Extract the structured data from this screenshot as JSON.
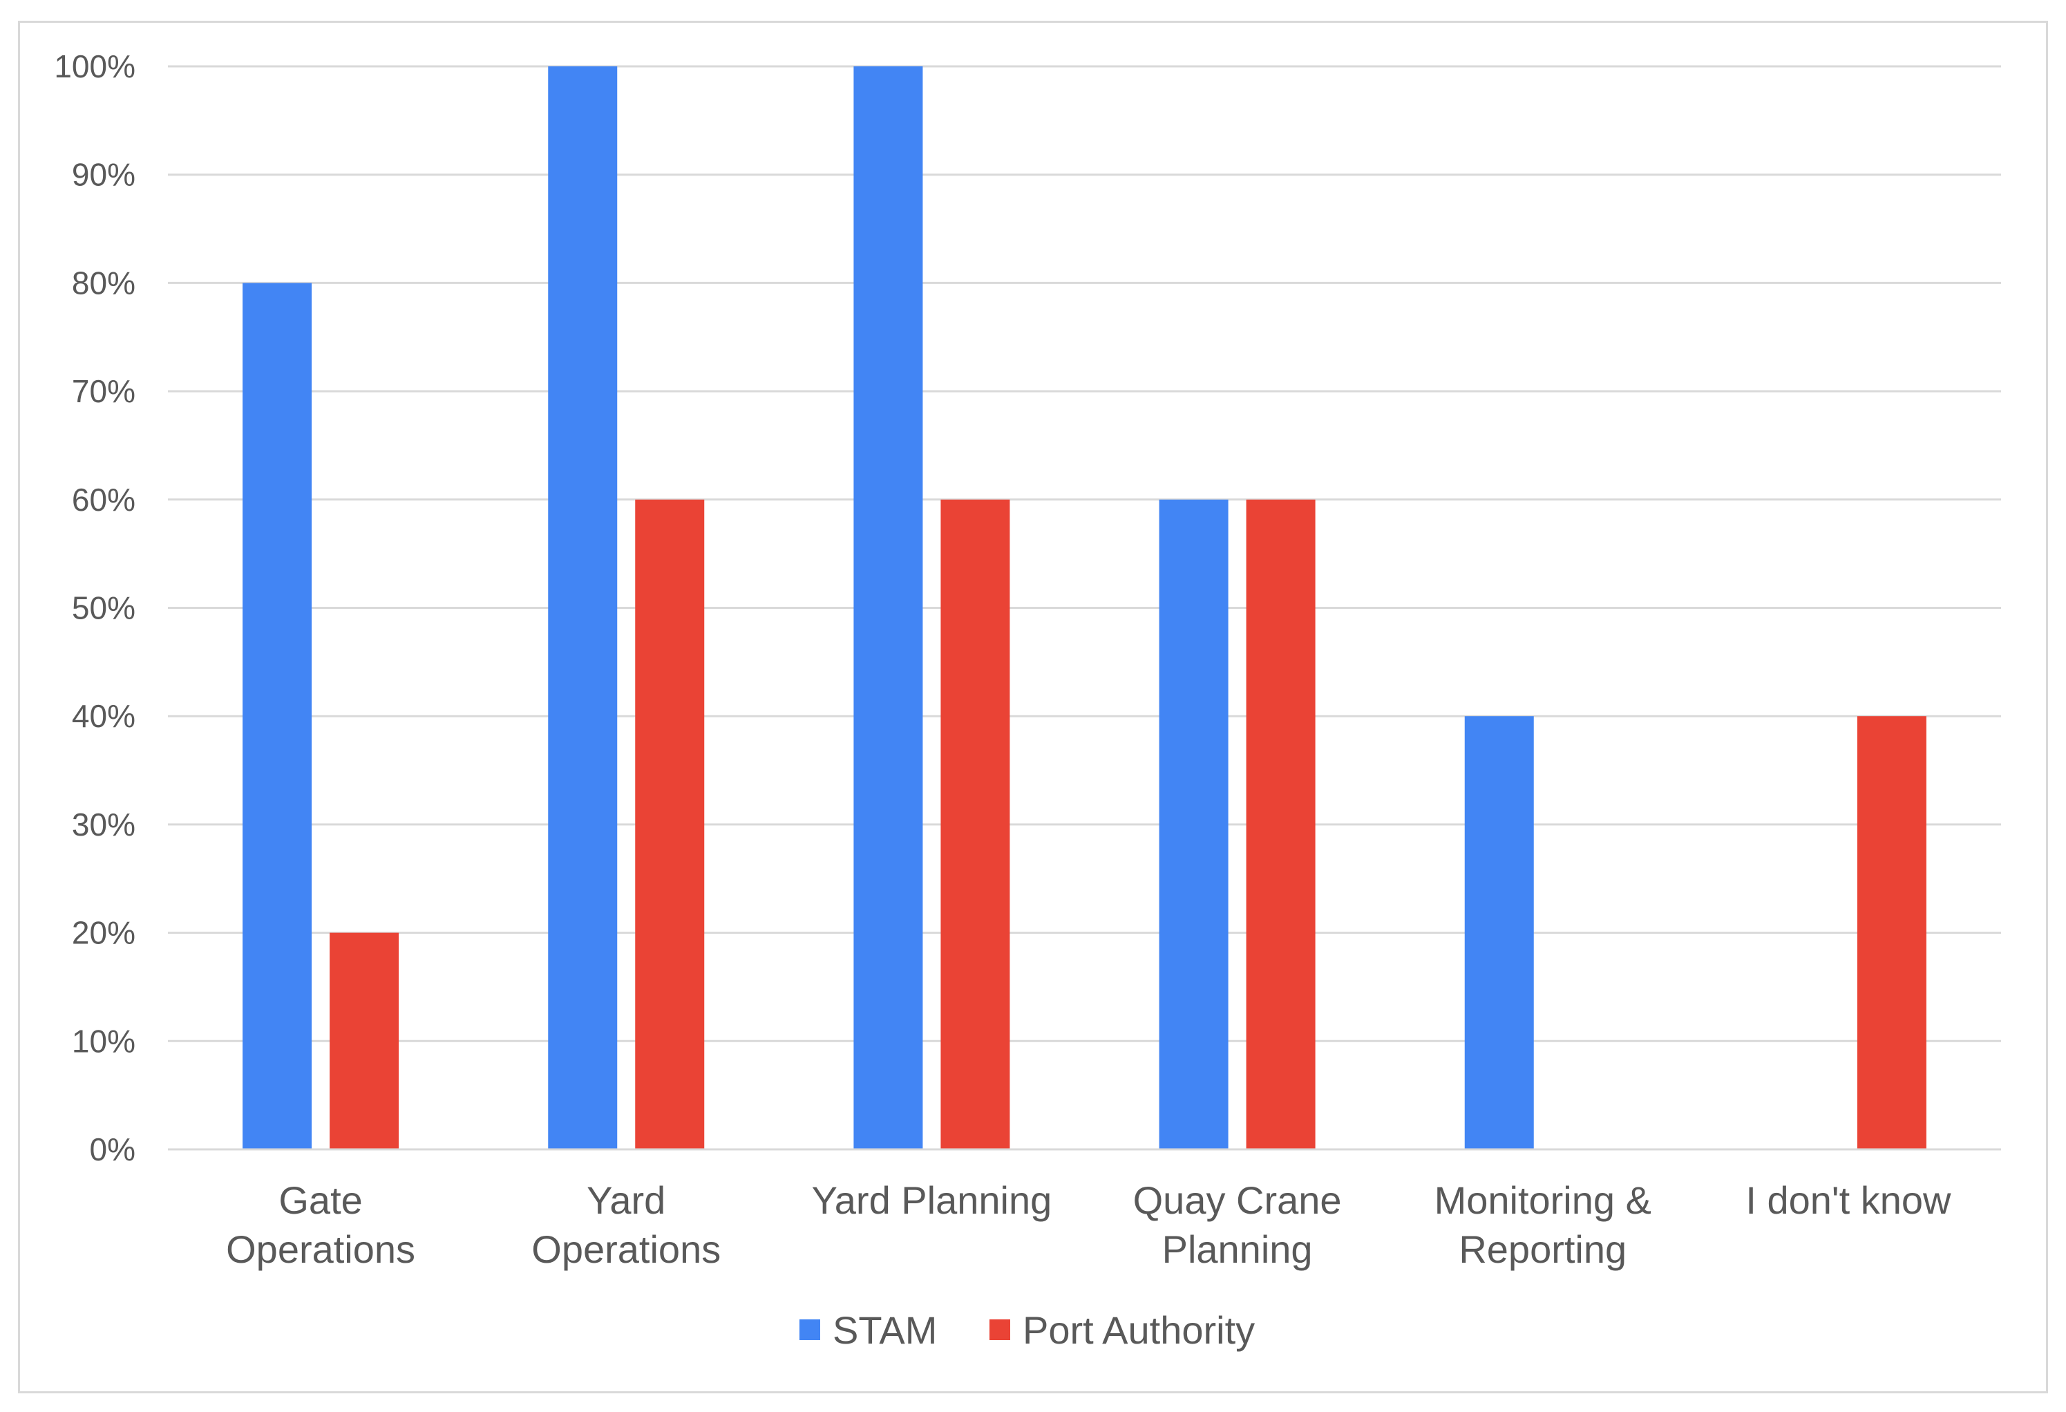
{
  "chart_data": {
    "type": "bar",
    "title": "",
    "xlabel": "",
    "ylabel": "",
    "ylim": [
      0,
      100
    ],
    "yticks": [
      0,
      10,
      20,
      30,
      40,
      50,
      60,
      70,
      80,
      90,
      100
    ],
    "ytick_labels": [
      "0%",
      "10%",
      "20%",
      "30%",
      "40%",
      "50%",
      "60%",
      "70%",
      "80%",
      "90%",
      "100%"
    ],
    "grid": true,
    "legend_position": "bottom",
    "categories": [
      [
        "Gate",
        "Operations"
      ],
      [
        "Yard",
        "Operations"
      ],
      [
        "Yard Planning"
      ],
      [
        "Quay Crane",
        "Planning"
      ],
      [
        "Monitoring &",
        "Reporting"
      ],
      [
        "I don't know"
      ]
    ],
    "series": [
      {
        "name": "STAM",
        "color": "#4285f4",
        "values": [
          80,
          100,
          100,
          60,
          40,
          0
        ]
      },
      {
        "name": "Port Authority",
        "color": "#ea4335",
        "values": [
          20,
          60,
          60,
          60,
          0,
          40
        ]
      }
    ]
  }
}
